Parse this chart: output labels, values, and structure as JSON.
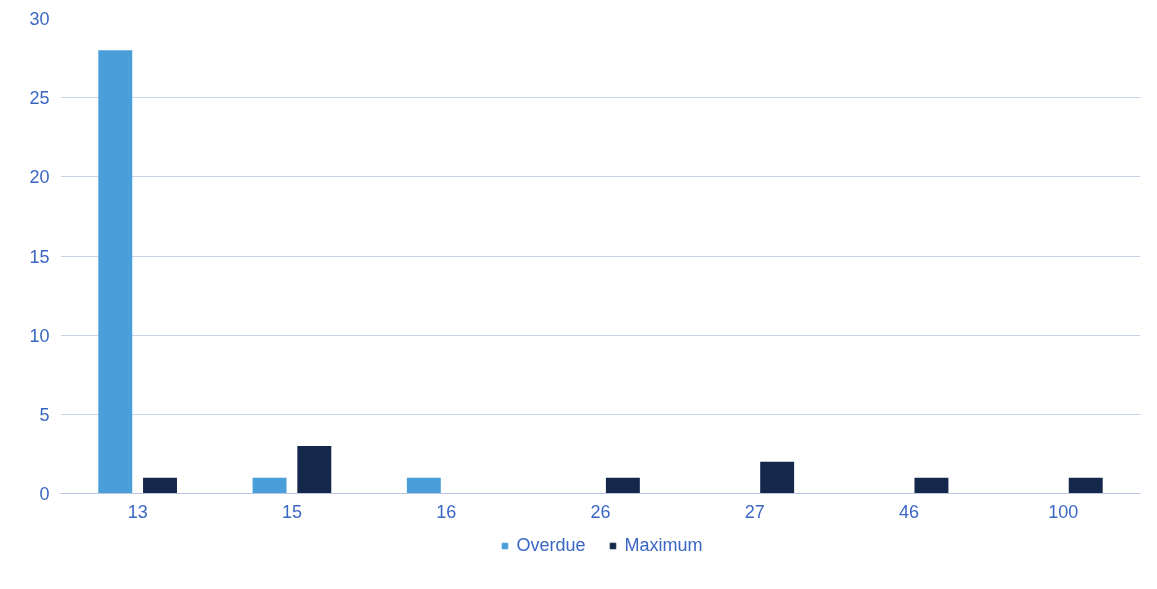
{
  "chart_data": {
    "type": "bar",
    "categories": [
      "13",
      "15",
      "16",
      "26",
      "27",
      "46",
      "100"
    ],
    "series": [
      {
        "name": "Overdue",
        "color": "#4a9fd8",
        "values": [
          28,
          1,
          1,
          0,
          0,
          0,
          0
        ]
      },
      {
        "name": "Maximum",
        "color": "#14284b",
        "values": [
          1,
          3,
          0,
          1,
          2,
          1,
          1
        ]
      }
    ],
    "ylim": [
      0,
      30
    ],
    "yticks": [
      0,
      5,
      10,
      15,
      20,
      25,
      30
    ],
    "grid": "y",
    "legend": "bottom"
  }
}
